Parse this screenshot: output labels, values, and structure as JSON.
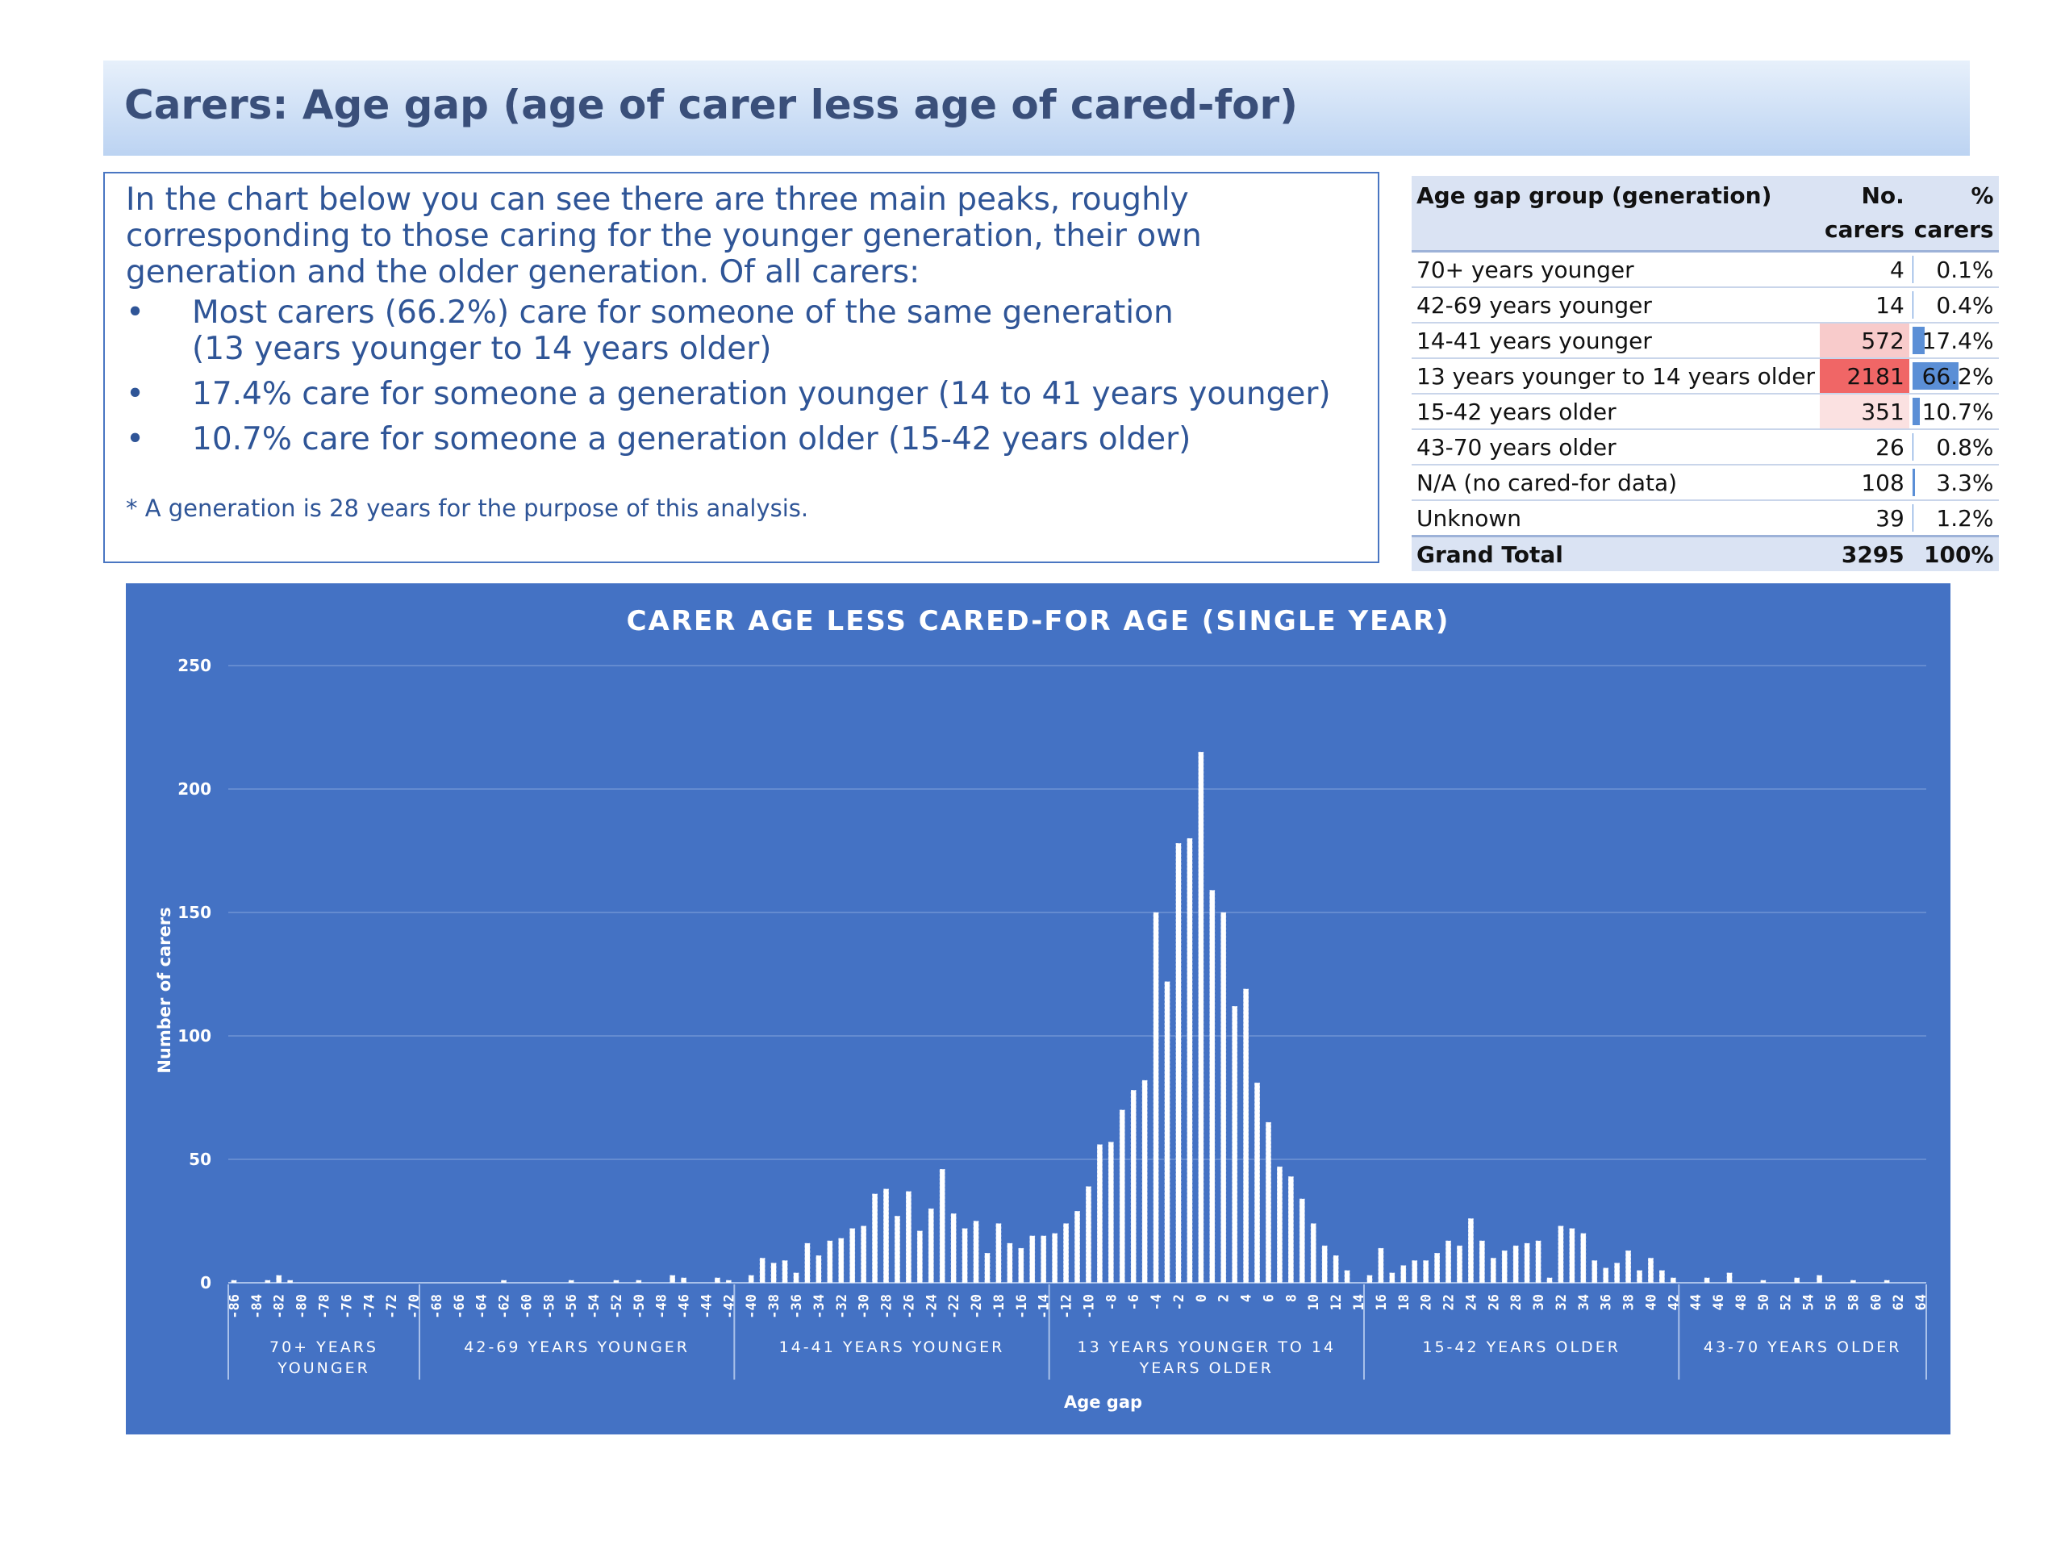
{
  "header": {
    "title": "Carers: Age gap (age of carer less age of cared-for)"
  },
  "summary": {
    "intro": "In the chart below you can see there are three main peaks, roughly corresponding to those caring for the younger generation, their own generation and the older generation. Of all carers:",
    "bullets": [
      {
        "marker": "•",
        "text": "Most carers (66.2%) care for someone of the same generation",
        "sub": "(13 years younger to 14 years older)"
      },
      {
        "marker": "•",
        "text": "17.4% care for someone a generation younger (14 to 41 years younger)",
        "sub": ""
      },
      {
        "marker": "•",
        "text": "10.7% care for someone a generation older (15-42 years older)",
        "sub": ""
      }
    ],
    "footnote": "* A generation is 28 years for the purpose of this analysis."
  },
  "table": {
    "headers": {
      "group": "Age gap group (generation)",
      "count_line1": "No.",
      "count_line2": "carers",
      "pct_line1": "%",
      "pct_line2": "carers"
    },
    "rows": [
      {
        "group": "70+ years younger",
        "count": "4",
        "pct": "0.1%",
        "pct_value": 0.1,
        "highlight": "#ffffff"
      },
      {
        "group": "42-69 years younger",
        "count": "14",
        "pct": "0.4%",
        "pct_value": 0.4,
        "highlight": "#ffffff"
      },
      {
        "group": "14-41 years younger",
        "count": "572",
        "pct": "17.4%",
        "pct_value": 17.4,
        "highlight": "#f8cbcb"
      },
      {
        "group": "13 years younger to 14 years older",
        "count": "2181",
        "pct": "66.2%",
        "pct_value": 66.2,
        "highlight": "#f06666"
      },
      {
        "group": "15-42 years older",
        "count": "351",
        "pct": "10.7%",
        "pct_value": 10.7,
        "highlight": "#fbe1e1"
      },
      {
        "group": "43-70 years older",
        "count": "26",
        "pct": "0.8%",
        "pct_value": 0.8,
        "highlight": "#ffffff"
      },
      {
        "group": "N/A (no cared-for data)",
        "count": "108",
        "pct": "3.3%",
        "pct_value": 3.3,
        "highlight": "#ffffff"
      },
      {
        "group": "Unknown",
        "count": "39",
        "pct": "1.2%",
        "pct_value": 1.2,
        "highlight": "#ffffff"
      }
    ],
    "total": {
      "group": "Grand Total",
      "count": "3295",
      "pct": "100%"
    }
  },
  "chart_data": {
    "type": "bar",
    "title": "CARER AGE LESS CARED-FOR AGE (SINGLE YEAR)",
    "xlabel": "Age gap",
    "ylabel": "Number of carers",
    "ylim": [
      0,
      250
    ],
    "yticks": [
      0,
      50,
      100,
      150,
      200,
      250
    ],
    "grid": true,
    "legend": "none",
    "x_range": [
      -86,
      64
    ],
    "x_tick_step": 2,
    "groups": [
      {
        "label": "70+ YEARS YOUNGER",
        "from": -86,
        "to": -70
      },
      {
        "label": "42-69 YEARS YOUNGER",
        "from": -69,
        "to": -42
      },
      {
        "label": "14-41 YEARS YOUNGER",
        "from": -41,
        "to": -14
      },
      {
        "label": "13 YEARS YOUNGER TO 14 YEARS OLDER",
        "from": -13,
        "to": 14
      },
      {
        "label": "15-42 YEARS OLDER",
        "from": 15,
        "to": 42
      },
      {
        "label": "43-70 YEARS OLDER",
        "from": 43,
        "to": 64
      }
    ],
    "points": [
      [
        -86,
        1
      ],
      [
        -83,
        1
      ],
      [
        -82,
        3
      ],
      [
        -81,
        1
      ],
      [
        -62,
        1
      ],
      [
        -56,
        1
      ],
      [
        -52,
        1
      ],
      [
        -50,
        1
      ],
      [
        -47,
        3
      ],
      [
        -46,
        2
      ],
      [
        -43,
        2
      ],
      [
        -42,
        1
      ],
      [
        -40,
        3
      ],
      [
        -39,
        10
      ],
      [
        -38,
        8
      ],
      [
        -37,
        9
      ],
      [
        -36,
        4
      ],
      [
        -35,
        16
      ],
      [
        -34,
        11
      ],
      [
        -33,
        17
      ],
      [
        -32,
        18
      ],
      [
        -31,
        22
      ],
      [
        -30,
        23
      ],
      [
        -29,
        36
      ],
      [
        -28,
        38
      ],
      [
        -27,
        27
      ],
      [
        -26,
        37
      ],
      [
        -25,
        21
      ],
      [
        -24,
        30
      ],
      [
        -23,
        46
      ],
      [
        -22,
        28
      ],
      [
        -21,
        22
      ],
      [
        -20,
        25
      ],
      [
        -19,
        12
      ],
      [
        -18,
        24
      ],
      [
        -17,
        16
      ],
      [
        -16,
        14
      ],
      [
        -15,
        19
      ],
      [
        -14,
        19
      ],
      [
        -13,
        20
      ],
      [
        -12,
        24
      ],
      [
        -11,
        29
      ],
      [
        -10,
        39
      ],
      [
        -9,
        56
      ],
      [
        -8,
        57
      ],
      [
        -7,
        70
      ],
      [
        -6,
        78
      ],
      [
        -5,
        82
      ],
      [
        -4,
        150
      ],
      [
        -3,
        122
      ],
      [
        -2,
        178
      ],
      [
        -1,
        180
      ],
      [
        0,
        215
      ],
      [
        1,
        159
      ],
      [
        2,
        150
      ],
      [
        3,
        112
      ],
      [
        4,
        119
      ],
      [
        5,
        81
      ],
      [
        6,
        65
      ],
      [
        7,
        47
      ],
      [
        8,
        43
      ],
      [
        9,
        34
      ],
      [
        10,
        24
      ],
      [
        11,
        15
      ],
      [
        12,
        11
      ],
      [
        13,
        5
      ],
      [
        15,
        3
      ],
      [
        16,
        14
      ],
      [
        17,
        4
      ],
      [
        18,
        7
      ],
      [
        19,
        9
      ],
      [
        20,
        9
      ],
      [
        21,
        12
      ],
      [
        22,
        17
      ],
      [
        23,
        15
      ],
      [
        24,
        26
      ],
      [
        25,
        17
      ],
      [
        26,
        10
      ],
      [
        27,
        13
      ],
      [
        28,
        15
      ],
      [
        29,
        16
      ],
      [
        30,
        17
      ],
      [
        31,
        2
      ],
      [
        32,
        23
      ],
      [
        33,
        22
      ],
      [
        34,
        20
      ],
      [
        35,
        9
      ],
      [
        36,
        6
      ],
      [
        37,
        8
      ],
      [
        38,
        13
      ],
      [
        39,
        5
      ],
      [
        40,
        10
      ],
      [
        41,
        5
      ],
      [
        42,
        2
      ],
      [
        45,
        2
      ],
      [
        47,
        4
      ],
      [
        50,
        1
      ],
      [
        53,
        2
      ],
      [
        55,
        3
      ],
      [
        58,
        1
      ],
      [
        61,
        1
      ]
    ]
  }
}
